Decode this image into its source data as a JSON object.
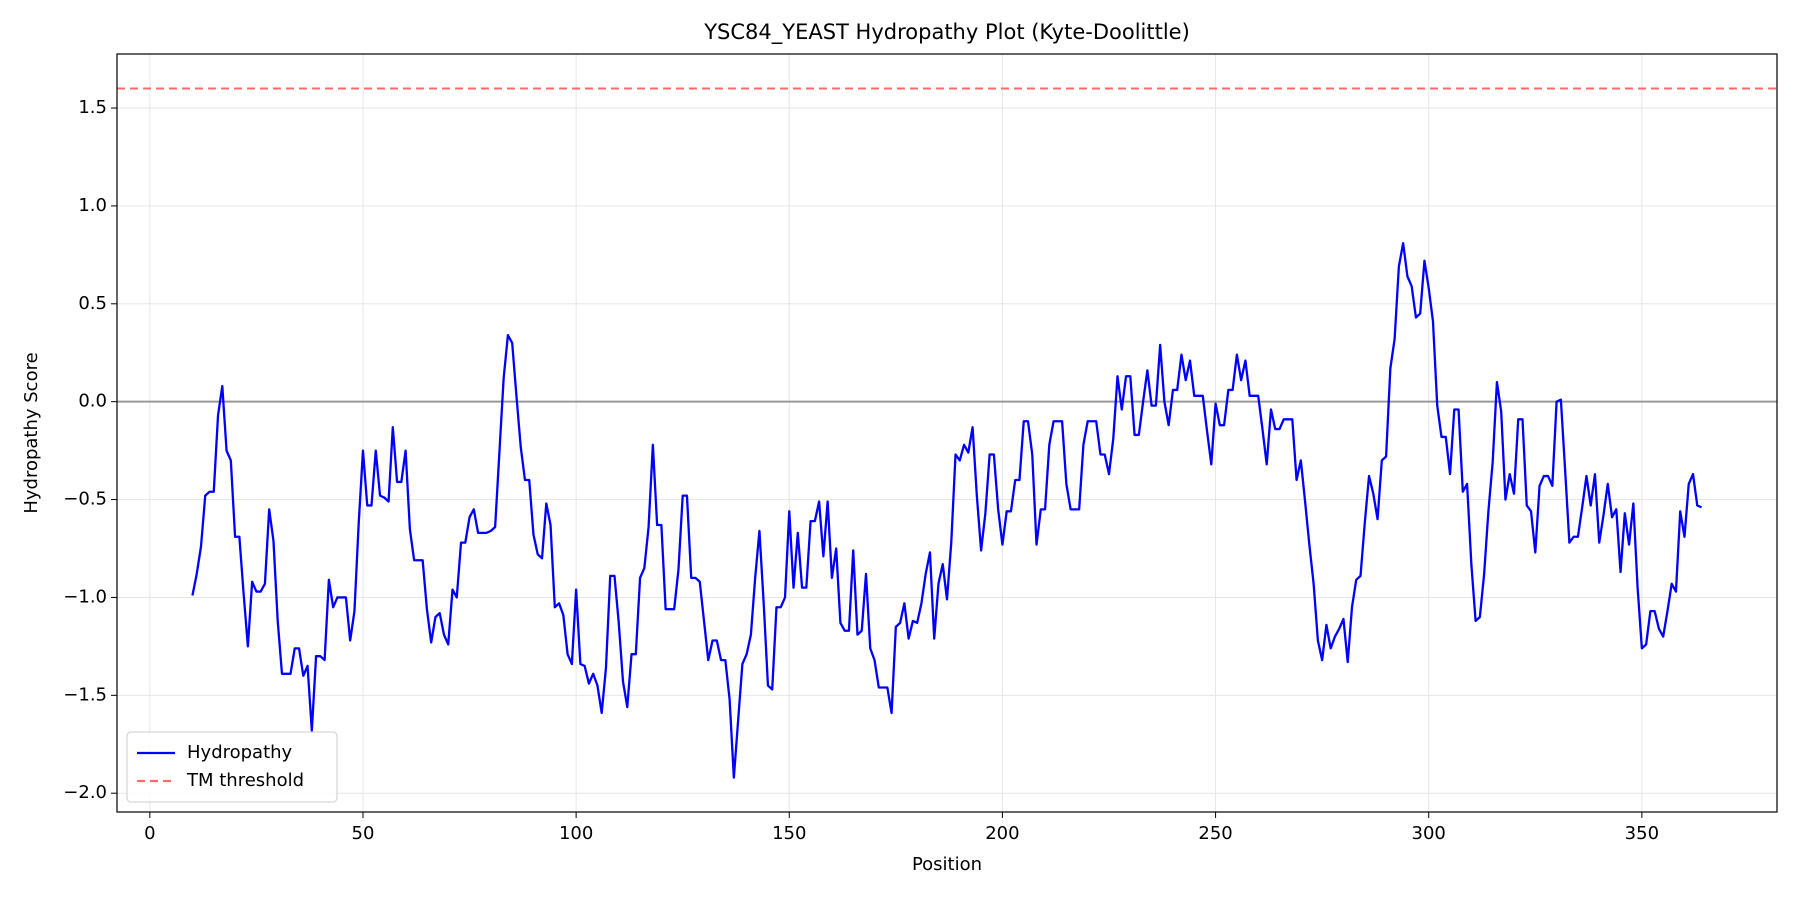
{
  "chart_data": {
    "type": "line",
    "title": "YSC84_YEAST Hydropathy Plot (Kyte-Doolittle)",
    "x_label": "Position",
    "y_label": "Hydropathy Score",
    "x": [
      10,
      11,
      12,
      13,
      14,
      15,
      16,
      17,
      18,
      19,
      20,
      21,
      22,
      23,
      24,
      25,
      26,
      27,
      28,
      29,
      30,
      31,
      32,
      33,
      34,
      35,
      36,
      37,
      38,
      39,
      40,
      41,
      42,
      43,
      44,
      45,
      46,
      47,
      48,
      49,
      50,
      51,
      52,
      53,
      54,
      55,
      56,
      57,
      58,
      59,
      60,
      61,
      62,
      63,
      64,
      65,
      66,
      67,
      68,
      69,
      70,
      71,
      72,
      73,
      74,
      75,
      76,
      77,
      78,
      79,
      80,
      81,
      82,
      83,
      84,
      85,
      86,
      87,
      88,
      89,
      90,
      91,
      92,
      93,
      94,
      95,
      96,
      97,
      98,
      99,
      100,
      101,
      102,
      103,
      104,
      105,
      106,
      107,
      108,
      109,
      110,
      111,
      112,
      113,
      114,
      115,
      116,
      117,
      118,
      119,
      120,
      121,
      122,
      123,
      124,
      125,
      126,
      127,
      128,
      129,
      130,
      131,
      132,
      133,
      134,
      135,
      136,
      137,
      138,
      139,
      140,
      141,
      142,
      143,
      144,
      145,
      146,
      147,
      148,
      149,
      150,
      151,
      152,
      153,
      154,
      155,
      156,
      157,
      158,
      159,
      160,
      161,
      162,
      163,
      164,
      165,
      166,
      167,
      168,
      169,
      170,
      171,
      172,
      173,
      174,
      175,
      176,
      177,
      178,
      179,
      180,
      181,
      182,
      183,
      184,
      185,
      186,
      187,
      188,
      189,
      190,
      191,
      192,
      193,
      194,
      195,
      196,
      197,
      198,
      199,
      200,
      201,
      202,
      203,
      204,
      205,
      206,
      207,
      208,
      209,
      210,
      211,
      212,
      213,
      214,
      215,
      216,
      217,
      218,
      219,
      220,
      221,
      222,
      223,
      224,
      225,
      226,
      227,
      228,
      229,
      230,
      231,
      232,
      233,
      234,
      235,
      236,
      237,
      238,
      239,
      240,
      241,
      242,
      243,
      244,
      245,
      246,
      247,
      248,
      249,
      250,
      251,
      252,
      253,
      254,
      255,
      256,
      257,
      258,
      259,
      260,
      261,
      262,
      263,
      264,
      265,
      266,
      267,
      268,
      269,
      270,
      271,
      272,
      273,
      274,
      275,
      276,
      277,
      278,
      279,
      280,
      281,
      282,
      283,
      284,
      285,
      286,
      287,
      288,
      289,
      290,
      291,
      292,
      293,
      294,
      295,
      296,
      297,
      298,
      299,
      300,
      301,
      302,
      303,
      304,
      305,
      306,
      307,
      308,
      309,
      310,
      311,
      312,
      313,
      314,
      315,
      316,
      317,
      318,
      319,
      320,
      321,
      322,
      323,
      324,
      325,
      326,
      327,
      328,
      329,
      330,
      331,
      332,
      333,
      334,
      335,
      336,
      337,
      338,
      339,
      340,
      341,
      342,
      343,
      344,
      345,
      346,
      347,
      348,
      349,
      350,
      351,
      352,
      353,
      354,
      355,
      356,
      357,
      358,
      359,
      360,
      361,
      362,
      363,
      364
    ],
    "series": [
      {
        "name": "Hydropathy",
        "color": "#0000ff",
        "values": [
          -0.99,
          -0.88,
          -0.74,
          -0.48,
          -0.46,
          -0.46,
          -0.07,
          0.08,
          -0.25,
          -0.3,
          -0.69,
          -0.69,
          -0.98,
          -1.25,
          -0.92,
          -0.97,
          -0.97,
          -0.93,
          -0.55,
          -0.71,
          -1.12,
          -1.39,
          -1.39,
          -1.39,
          -1.26,
          -1.26,
          -1.4,
          -1.35,
          -1.68,
          -1.3,
          -1.3,
          -1.32,
          -0.91,
          -1.05,
          -1.0,
          -1.0,
          -1.0,
          -1.22,
          -1.07,
          -0.62,
          -0.25,
          -0.53,
          -0.53,
          -0.25,
          -0.48,
          -0.49,
          -0.51,
          -0.13,
          -0.41,
          -0.41,
          -0.25,
          -0.65,
          -0.81,
          -0.81,
          -0.81,
          -1.06,
          -1.23,
          -1.1,
          -1.08,
          -1.19,
          -1.24,
          -0.96,
          -1.0,
          -0.72,
          -0.72,
          -0.59,
          -0.55,
          -0.67,
          -0.67,
          -0.67,
          -0.66,
          -0.64,
          -0.26,
          0.12,
          0.34,
          0.3,
          0.03,
          -0.23,
          -0.4,
          -0.4,
          -0.68,
          -0.78,
          -0.8,
          -0.52,
          -0.63,
          -1.05,
          -1.03,
          -1.09,
          -1.29,
          -1.34,
          -0.96,
          -1.34,
          -1.35,
          -1.44,
          -1.39,
          -1.45,
          -1.59,
          -1.36,
          -0.89,
          -0.89,
          -1.13,
          -1.43,
          -1.56,
          -1.29,
          -1.29,
          -0.9,
          -0.85,
          -0.64,
          -0.22,
          -0.63,
          -0.63,
          -1.06,
          -1.06,
          -1.06,
          -0.86,
          -0.48,
          -0.48,
          -0.9,
          -0.9,
          -0.92,
          -1.12,
          -1.32,
          -1.22,
          -1.22,
          -1.32,
          -1.32,
          -1.52,
          -1.92,
          -1.63,
          -1.34,
          -1.29,
          -1.19,
          -0.9,
          -0.66,
          -1.03,
          -1.45,
          -1.47,
          -1.05,
          -1.05,
          -1.0,
          -0.56,
          -0.95,
          -0.67,
          -0.95,
          -0.95,
          -0.61,
          -0.61,
          -0.51,
          -0.79,
          -0.51,
          -0.9,
          -0.75,
          -1.13,
          -1.17,
          -1.17,
          -0.76,
          -1.19,
          -1.17,
          -0.88,
          -1.26,
          -1.32,
          -1.46,
          -1.46,
          -1.46,
          -1.59,
          -1.15,
          -1.13,
          -1.03,
          -1.21,
          -1.12,
          -1.13,
          -1.03,
          -0.88,
          -0.77,
          -1.21,
          -0.93,
          -0.83,
          -1.01,
          -0.72,
          -0.27,
          -0.3,
          -0.22,
          -0.26,
          -0.13,
          -0.48,
          -0.76,
          -0.57,
          -0.27,
          -0.27,
          -0.55,
          -0.73,
          -0.56,
          -0.56,
          -0.4,
          -0.4,
          -0.1,
          -0.1,
          -0.27,
          -0.73,
          -0.55,
          -0.55,
          -0.22,
          -0.1,
          -0.1,
          -0.1,
          -0.42,
          -0.55,
          -0.55,
          -0.55,
          -0.22,
          -0.1,
          -0.1,
          -0.1,
          -0.27,
          -0.27,
          -0.37,
          -0.19,
          0.13,
          -0.04,
          0.13,
          0.13,
          -0.17,
          -0.17,
          0.0,
          0.16,
          -0.02,
          -0.02,
          0.29,
          0.0,
          -0.12,
          0.06,
          0.06,
          0.24,
          0.11,
          0.21,
          0.03,
          0.03,
          0.03,
          -0.15,
          -0.32,
          -0.01,
          -0.12,
          -0.12,
          0.06,
          0.06,
          0.24,
          0.11,
          0.21,
          0.03,
          0.03,
          0.03,
          -0.14,
          -0.32,
          -0.04,
          -0.14,
          -0.14,
          -0.09,
          -0.09,
          -0.09,
          -0.4,
          -0.3,
          -0.51,
          -0.73,
          -0.93,
          -1.22,
          -1.32,
          -1.14,
          -1.26,
          -1.2,
          -1.16,
          -1.11,
          -1.33,
          -1.05,
          -0.91,
          -0.89,
          -0.62,
          -0.38,
          -0.47,
          -0.6,
          -0.3,
          -0.28,
          0.17,
          0.32,
          0.69,
          0.81,
          0.64,
          0.59,
          0.43,
          0.45,
          0.72,
          0.58,
          0.41,
          -0.02,
          -0.18,
          -0.18,
          -0.37,
          -0.04,
          -0.04,
          -0.46,
          -0.42,
          -0.83,
          -1.12,
          -1.1,
          -0.88,
          -0.56,
          -0.31,
          0.1,
          -0.05,
          -0.5,
          -0.37,
          -0.47,
          -0.09,
          -0.09,
          -0.53,
          -0.56,
          -0.77,
          -0.43,
          -0.38,
          -0.38,
          -0.43,
          0.0,
          0.01,
          -0.35,
          -0.72,
          -0.69,
          -0.69,
          -0.54,
          -0.38,
          -0.53,
          -0.37,
          -0.72,
          -0.58,
          -0.42,
          -0.59,
          -0.55,
          -0.87,
          -0.57,
          -0.73,
          -0.52,
          -0.95,
          -1.26,
          -1.24,
          -1.07,
          -1.07,
          -1.16,
          -1.2,
          -1.07,
          -0.93,
          -0.97,
          -0.56,
          -0.69,
          -0.42,
          -0.37,
          -0.53,
          -0.54
        ]
      }
    ],
    "hlines": [
      {
        "name": "TM threshold",
        "value": 1.6,
        "color": "#ff6b6b",
        "dashed": true
      },
      {
        "value": 0,
        "color": "#999999",
        "dashed": false
      }
    ],
    "xlim": [
      -7.7,
      381.7
    ],
    "ylim": [
      -2.096,
      1.776
    ],
    "xticks": [
      0,
      50,
      100,
      150,
      200,
      250,
      300,
      350
    ],
    "yticks": [
      {
        "value": -2,
        "label": "−2.0"
      },
      {
        "value": -1.5,
        "label": "−1.5"
      },
      {
        "value": -1,
        "label": "−1.0"
      },
      {
        "value": -0.5,
        "label": "−0.5"
      },
      {
        "value": 0,
        "label": "0.0"
      },
      0.5,
      {
        "value": 1,
        "label": "1.0"
      },
      1.5
    ],
    "grid": true,
    "legend": "lower left"
  }
}
